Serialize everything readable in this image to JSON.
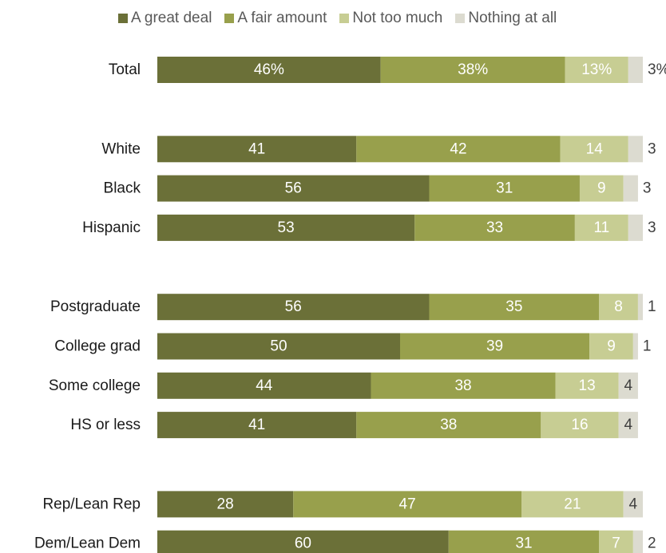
{
  "chart_data": {
    "type": "bar",
    "orientation": "horizontal",
    "stacked": true,
    "xlim": [
      0,
      100
    ],
    "legend_position": "top",
    "series": [
      {
        "name": "A great deal",
        "color": "#6b7038"
      },
      {
        "name": "A fair amount",
        "color": "#98a04c"
      },
      {
        "name": "Not too much",
        "color": "#c7cd93"
      },
      {
        "name": "Nothing at all",
        "color": "#dcdbd0"
      }
    ],
    "label_colors": {
      "inside_bar": "#ffffff",
      "outside_bar": "#3f3f3f"
    },
    "groups": [
      {
        "rows": [
          {
            "label": "Total",
            "values": [
              46,
              38,
              13,
              3
            ],
            "value_labels": [
              "46%",
              "38%",
              "13%",
              "3%"
            ]
          }
        ]
      },
      {
        "rows": [
          {
            "label": "White",
            "values": [
              41,
              42,
              14,
              3
            ],
            "value_labels": [
              "41",
              "42",
              "14",
              "3"
            ]
          },
          {
            "label": "Black",
            "values": [
              56,
              31,
              9,
              3
            ],
            "value_labels": [
              "56",
              "31",
              "9",
              "3"
            ]
          },
          {
            "label": "Hispanic",
            "values": [
              53,
              33,
              11,
              3
            ],
            "value_labels": [
              "53",
              "33",
              "11",
              "3"
            ]
          }
        ]
      },
      {
        "rows": [
          {
            "label": "Postgraduate",
            "values": [
              56,
              35,
              8,
              1
            ],
            "value_labels": [
              "56",
              "35",
              "8",
              "1"
            ]
          },
          {
            "label": "College grad",
            "values": [
              50,
              39,
              9,
              1
            ],
            "value_labels": [
              "50",
              "39",
              "9",
              "1"
            ]
          },
          {
            "label": "Some college",
            "values": [
              44,
              38,
              13,
              4
            ],
            "value_labels": [
              "44",
              "38",
              "13",
              "4"
            ]
          },
          {
            "label": "HS or less",
            "values": [
              41,
              38,
              16,
              4
            ],
            "value_labels": [
              "41",
              "38",
              "16",
              "4"
            ]
          }
        ]
      },
      {
        "rows": [
          {
            "label": "Rep/Lean Rep",
            "values": [
              28,
              47,
              21,
              4
            ],
            "value_labels": [
              "28",
              "47",
              "21",
              "4"
            ]
          },
          {
            "label": "Dem/Lean Dem",
            "values": [
              60,
              31,
              7,
              2
            ],
            "value_labels": [
              "60",
              "31",
              "7",
              "2"
            ]
          }
        ]
      }
    ]
  }
}
